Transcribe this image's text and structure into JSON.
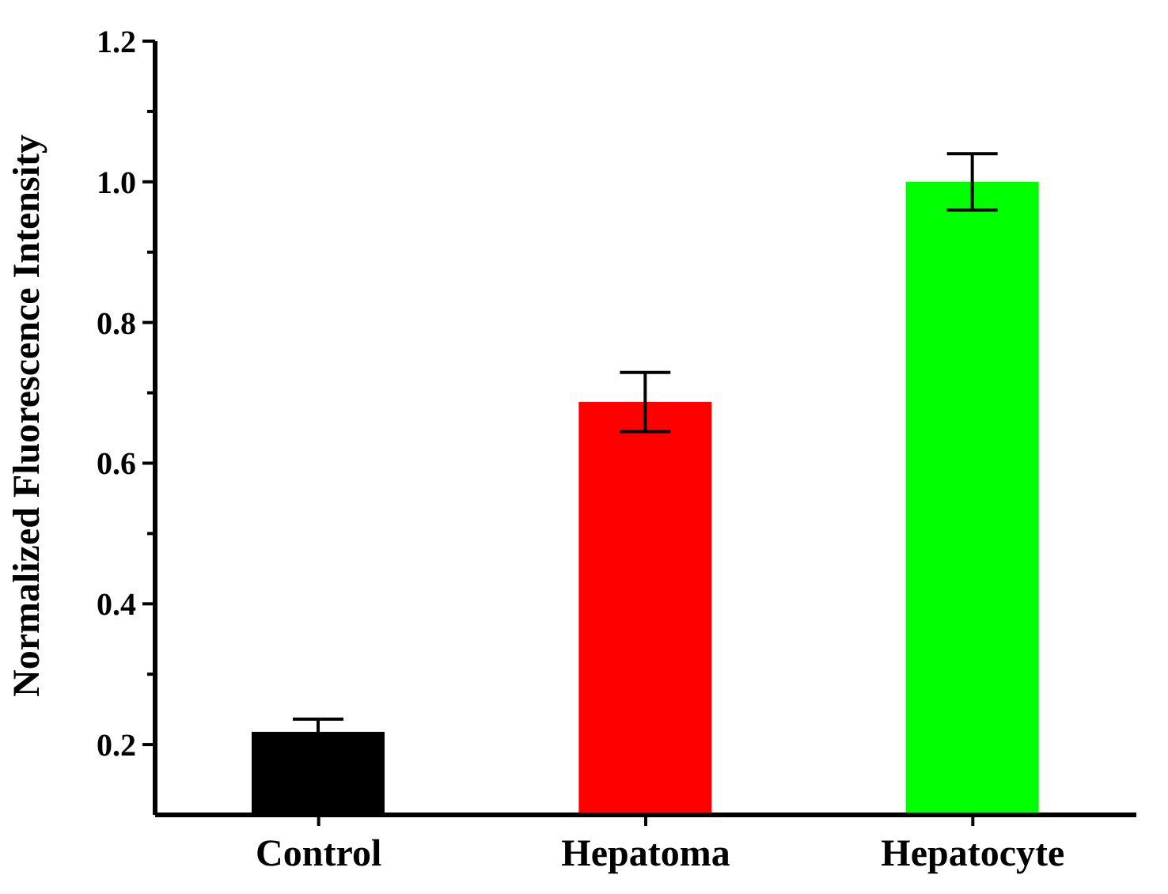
{
  "chart_data": {
    "type": "bar",
    "ylabel": "Normalized Fluorescence Intensity",
    "categories": [
      "Control",
      "Hepatoma",
      "Hepatocyte"
    ],
    "values": [
      0.218,
      0.687,
      1.0
    ],
    "colors": [
      "#000000",
      "#ff0000",
      "#00ff00"
    ],
    "errors": [
      0.018,
      0.042,
      0.04
    ],
    "ylim": [
      0.1,
      1.2
    ],
    "yticks": [
      {
        "value": 0.3,
        "label": null
      },
      {
        "value": 0.5,
        "label": null
      },
      {
        "value": 0.7,
        "label": null
      },
      {
        "value": 0.9,
        "label": null
      },
      {
        "value": 1.1,
        "label": null
      },
      {
        "value": 0.2,
        "label": "0.2"
      },
      {
        "value": 0.4,
        "label": "0.4"
      },
      {
        "value": 0.6,
        "label": "0.6"
      },
      {
        "value": 0.8,
        "label": "0.8"
      },
      {
        "value": 1.0,
        "label": "1.0"
      },
      {
        "value": 1.2,
        "label": "1.2"
      }
    ],
    "grid": false,
    "legend": false
  }
}
